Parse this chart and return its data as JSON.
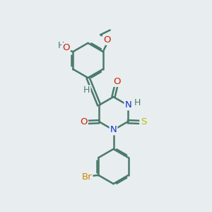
{
  "bg_color": "#e8edf0",
  "bond_color": "#4a7a6a",
  "bond_width": 1.8,
  "atom_colors": {
    "C": "#4a7a6a",
    "H": "#4a7a6a",
    "O": "#cc2200",
    "N": "#1133cc",
    "S": "#bbbb00",
    "Br": "#cc8800"
  },
  "font_size": 9.5,
  "fig_size": [
    3.0,
    3.0
  ],
  "dpi": 100,
  "xlim": [
    0,
    10
  ],
  "ylim": [
    0,
    10
  ]
}
